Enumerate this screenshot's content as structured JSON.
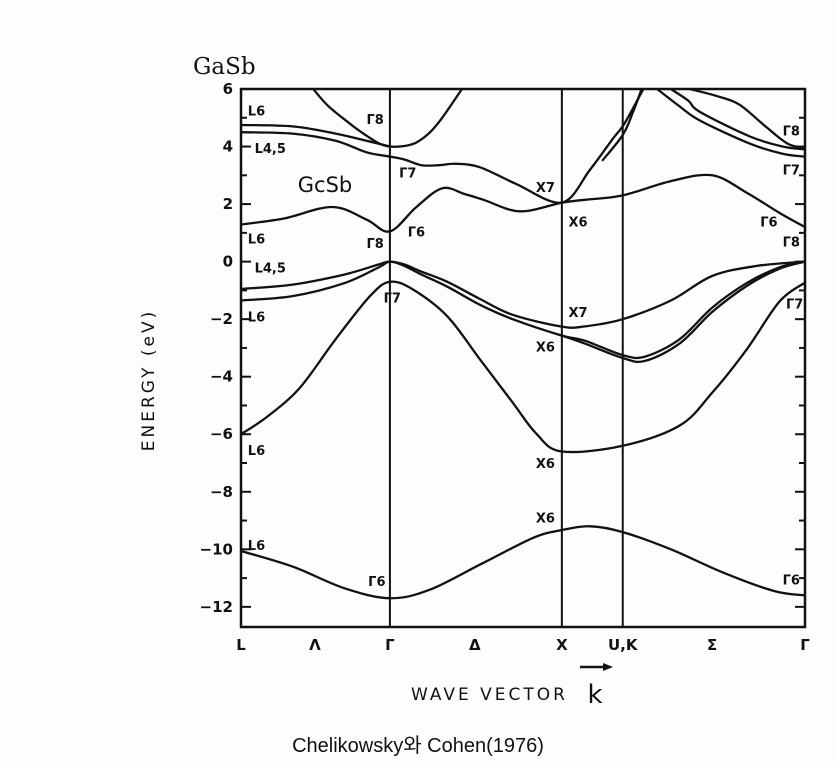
{
  "title": "GaSb",
  "caption": "Chelikowsky와 Cohen(1976)",
  "chart_data": {
    "type": "line",
    "inner_label": "GcSb",
    "xlabel": "WAVE VECTOR",
    "xlabel_symbol": "k",
    "ylabel": "ENERGY (eV)",
    "ylim": [
      -12.7,
      6
    ],
    "xlim": [
      0,
      3.28
    ],
    "grid": false,
    "y_ticks": [
      6,
      4,
      2,
      0,
      -2,
      -4,
      -6,
      -8,
      -10,
      -12
    ],
    "x_ticks": [
      {
        "label": "L",
        "k": 0
      },
      {
        "label": "Λ",
        "k": 0.43
      },
      {
        "label": "Γ",
        "k": 0.866
      },
      {
        "label": "Δ",
        "k": 1.36
      },
      {
        "label": "X",
        "k": 1.866
      },
      {
        "label": "U,K",
        "k": 2.22
      },
      {
        "label": "Σ",
        "k": 2.74
      },
      {
        "label": "Γ",
        "k": 3.28
      }
    ],
    "symmetry_lines_k": [
      0.866,
      1.866,
      2.22
    ],
    "bands": [
      {
        "points": [
          [
            0,
            -10.06
          ],
          [
            0.3,
            -10.6
          ],
          [
            0.6,
            -11.35
          ],
          [
            0.866,
            -11.7
          ],
          [
            1.1,
            -11.4
          ],
          [
            1.4,
            -10.5
          ],
          [
            1.7,
            -9.6
          ],
          [
            1.866,
            -9.33
          ],
          [
            2.03,
            -9.2
          ],
          [
            2.22,
            -9.4
          ],
          [
            2.5,
            -10.0
          ],
          [
            2.8,
            -10.8
          ],
          [
            3.1,
            -11.45
          ],
          [
            3.28,
            -11.6
          ]
        ]
      },
      {
        "points": [
          [
            0,
            -6.0
          ],
          [
            0.15,
            -5.4
          ],
          [
            0.34,
            -4.4
          ],
          [
            0.55,
            -2.7
          ],
          [
            0.75,
            -1.2
          ],
          [
            0.866,
            -0.7
          ],
          [
            1.0,
            -0.97
          ],
          [
            1.2,
            -1.9
          ],
          [
            1.39,
            -3.4
          ],
          [
            1.58,
            -4.9
          ],
          [
            1.72,
            -6.0
          ],
          [
            1.866,
            -6.6
          ],
          [
            2.22,
            -6.4
          ],
          [
            2.55,
            -5.7
          ],
          [
            2.74,
            -4.56
          ],
          [
            2.94,
            -3.06
          ],
          [
            3.13,
            -1.4
          ],
          [
            3.28,
            -0.73
          ]
        ]
      },
      {
        "points": [
          [
            0,
            -0.95
          ],
          [
            0.3,
            -0.8
          ],
          [
            0.6,
            -0.45
          ],
          [
            0.8,
            -0.1
          ],
          [
            0.866,
            0
          ],
          [
            0.95,
            -0.1
          ],
          [
            1.05,
            -0.35
          ],
          [
            1.2,
            -0.7
          ],
          [
            1.39,
            -1.3
          ],
          [
            1.58,
            -1.85
          ],
          [
            1.866,
            -2.26
          ],
          [
            2.0,
            -2.25
          ],
          [
            2.22,
            -2.0
          ],
          [
            2.5,
            -1.35
          ],
          [
            2.74,
            -0.5
          ],
          [
            3.0,
            -0.15
          ],
          [
            3.28,
            0
          ]
        ]
      },
      {
        "points": [
          [
            0,
            -1.35
          ],
          [
            0.3,
            -1.2
          ],
          [
            0.6,
            -0.75
          ],
          [
            0.8,
            -0.2
          ],
          [
            0.866,
            0
          ],
          [
            0.95,
            -0.15
          ],
          [
            1.05,
            -0.45
          ],
          [
            1.2,
            -0.87
          ],
          [
            1.39,
            -1.5
          ],
          [
            1.58,
            -2.0
          ],
          [
            1.866,
            -2.57
          ],
          [
            2.0,
            -2.75
          ],
          [
            2.22,
            -3.25
          ],
          [
            2.35,
            -3.3
          ],
          [
            2.55,
            -2.7
          ],
          [
            2.74,
            -1.6
          ],
          [
            2.94,
            -0.75
          ],
          [
            3.13,
            -0.2
          ],
          [
            3.28,
            0
          ]
        ]
      },
      {
        "points": [
          [
            1.866,
            -2.57
          ],
          [
            2.0,
            -2.85
          ],
          [
            2.22,
            -3.35
          ],
          [
            2.35,
            -3.45
          ],
          [
            2.55,
            -2.85
          ],
          [
            2.74,
            -1.75
          ],
          [
            2.94,
            -0.85
          ],
          [
            3.13,
            -0.25
          ],
          [
            3.28,
            0
          ]
        ]
      },
      {
        "points": [
          [
            0,
            1.29
          ],
          [
            0.25,
            1.5
          ],
          [
            0.53,
            1.9
          ],
          [
            0.73,
            1.46
          ],
          [
            0.866,
            1.05
          ],
          [
            1.02,
            1.9
          ],
          [
            1.17,
            2.55
          ],
          [
            1.3,
            2.35
          ],
          [
            1.41,
            2.15
          ],
          [
            1.62,
            1.75
          ],
          [
            1.866,
            2.05
          ],
          [
            2.0,
            2.15
          ],
          [
            2.22,
            2.3
          ],
          [
            2.5,
            2.8
          ],
          [
            2.74,
            3.0
          ],
          [
            2.94,
            2.4
          ],
          [
            3.13,
            1.7
          ],
          [
            3.28,
            1.2
          ]
        ]
      },
      {
        "points": [
          [
            0,
            4.5
          ],
          [
            0.3,
            4.45
          ],
          [
            0.55,
            4.2
          ],
          [
            0.73,
            3.8
          ],
          [
            0.866,
            3.65
          ],
          [
            0.95,
            3.55
          ],
          [
            1.05,
            3.35
          ],
          [
            1.15,
            3.35
          ],
          [
            1.25,
            3.4
          ],
          [
            1.39,
            3.28
          ],
          [
            1.6,
            2.7
          ],
          [
            1.866,
            2.05
          ],
          [
            2.03,
            3.2
          ],
          [
            2.16,
            4.25
          ],
          [
            2.23,
            4.8
          ],
          [
            2.34,
            6.0
          ]
        ]
      },
      {
        "points": [
          [
            2.1,
            3.5
          ],
          [
            2.22,
            4.4
          ],
          [
            2.28,
            5.2
          ],
          [
            2.33,
            6.0
          ]
        ]
      },
      {
        "points": [
          [
            0,
            4.75
          ],
          [
            0.3,
            4.7
          ],
          [
            0.55,
            4.45
          ],
          [
            0.73,
            4.2
          ],
          [
            0.866,
            4.0
          ]
        ]
      },
      {
        "points": [
          [
            0.42,
            6.0
          ],
          [
            0.5,
            5.45
          ],
          [
            0.6,
            4.95
          ],
          [
            0.7,
            4.5
          ],
          [
            0.8,
            4.12
          ],
          [
            0.866,
            4.0
          ],
          [
            0.95,
            4.02
          ],
          [
            1.02,
            4.14
          ],
          [
            1.1,
            4.5
          ],
          [
            1.17,
            5.0
          ],
          [
            1.285,
            6.0
          ]
        ]
      },
      {
        "points": [
          [
            2.42,
            6.0
          ],
          [
            2.55,
            5.4
          ],
          [
            2.67,
            4.9
          ],
          [
            2.96,
            4.1
          ],
          [
            3.15,
            3.75
          ],
          [
            3.28,
            3.65
          ]
        ]
      },
      {
        "points": [
          [
            2.5,
            6.0
          ],
          [
            2.6,
            5.6
          ],
          [
            2.67,
            5.2
          ],
          [
            2.96,
            4.35
          ],
          [
            3.15,
            4.0
          ],
          [
            3.28,
            3.9
          ]
        ]
      },
      {
        "points": [
          [
            2.61,
            6.0
          ],
          [
            2.77,
            5.75
          ],
          [
            2.9,
            5.45
          ],
          [
            3.05,
            4.7
          ],
          [
            3.18,
            4.1
          ],
          [
            3.28,
            3.95
          ]
        ]
      }
    ],
    "annotations": [
      {
        "text": "L6",
        "k": 0.09,
        "E": 5.25
      },
      {
        "text": "L4,5",
        "k": 0.17,
        "E": 3.95
      },
      {
        "text": "L6",
        "k": 0.09,
        "E": 0.8
      },
      {
        "text": "L4,5",
        "k": 0.17,
        "E": -0.2
      },
      {
        "text": "L6",
        "k": 0.09,
        "E": -1.9
      },
      {
        "text": "L6",
        "k": 0.09,
        "E": -6.55
      },
      {
        "text": "L6",
        "k": 0.09,
        "E": -9.85
      },
      {
        "text": "Γ8",
        "k": 0.78,
        "E": 4.95
      },
      {
        "text": "Γ7",
        "k": 0.97,
        "E": 3.1
      },
      {
        "text": "Γ6",
        "k": 1.02,
        "E": 1.05
      },
      {
        "text": "Γ8",
        "k": 0.78,
        "E": 0.65
      },
      {
        "text": "Γ7",
        "k": 0.88,
        "E": -1.25
      },
      {
        "text": "Γ6",
        "k": 0.79,
        "E": -11.1
      },
      {
        "text": "X7",
        "k": 1.77,
        "E": 2.6
      },
      {
        "text": "X6",
        "k": 1.96,
        "E": 1.4
      },
      {
        "text": "X7",
        "k": 1.96,
        "E": -1.75
      },
      {
        "text": "X6",
        "k": 1.77,
        "E": -2.95
      },
      {
        "text": "X6",
        "k": 1.77,
        "E": -7.0
      },
      {
        "text": "X6",
        "k": 1.77,
        "E": -8.9
      },
      {
        "text": "Γ8",
        "k": 3.2,
        "E": 4.55
      },
      {
        "text": "Γ7",
        "k": 3.2,
        "E": 3.2
      },
      {
        "text": "Γ6",
        "k": 3.07,
        "E": 1.4
      },
      {
        "text": "Γ8",
        "k": 3.2,
        "E": 0.7
      },
      {
        "text": "Γ7",
        "k": 3.22,
        "E": -1.45
      },
      {
        "text": "Γ6",
        "k": 3.2,
        "E": -11.05
      }
    ]
  }
}
